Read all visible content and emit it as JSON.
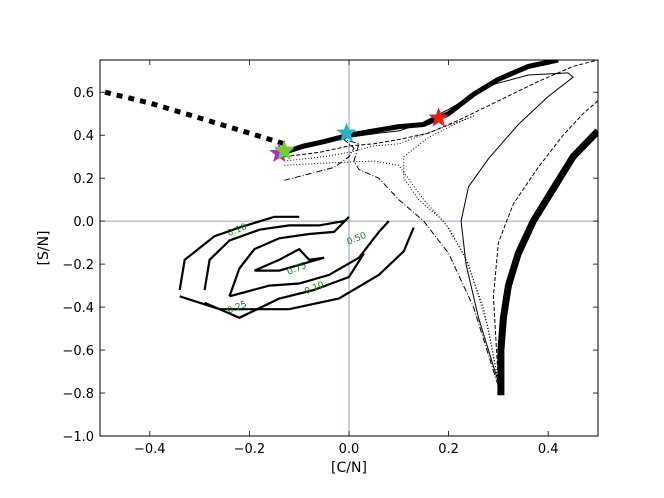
{
  "chart_data": {
    "type": "line",
    "xlabel": "[C/N]",
    "ylabel": "[S/N]",
    "xlim": [
      -0.5,
      0.5
    ],
    "ylim": [
      -1.0,
      0.75
    ],
    "xticks": [
      -0.4,
      -0.2,
      0.0,
      0.2,
      0.4
    ],
    "xtick_labels": [
      "−0.4",
      "−0.2",
      "0.0",
      "0.2",
      "0.4"
    ],
    "yticks": [
      -1.0,
      -0.8,
      -0.6,
      -0.4,
      -0.2,
      0.0,
      0.2,
      0.4,
      0.6
    ],
    "ytick_labels": [
      "−1.0",
      "−0.8",
      "−0.6",
      "−0.4",
      "−0.2",
      "0.0",
      "0.2",
      "0.4",
      "0.6"
    ],
    "reference_lines": {
      "x": 0.0,
      "y": 0.0,
      "color": "#6b7fd7"
    },
    "series": [
      {
        "style": "dotted-thick",
        "points": [
          [
            -0.49,
            0.6
          ],
          [
            -0.4,
            0.55
          ],
          [
            -0.3,
            0.48
          ],
          [
            -0.2,
            0.41
          ],
          [
            -0.13,
            0.36
          ]
        ]
      },
      {
        "style": "solid-thick",
        "points": [
          [
            -0.13,
            0.32
          ],
          [
            -0.09,
            0.35
          ],
          [
            -0.05,
            0.37
          ],
          [
            0.0,
            0.4
          ],
          [
            0.05,
            0.42
          ],
          [
            0.1,
            0.44
          ],
          [
            0.15,
            0.45
          ],
          [
            0.2,
            0.5
          ],
          [
            0.25,
            0.59
          ],
          [
            0.3,
            0.66
          ],
          [
            0.36,
            0.72
          ],
          [
            0.42,
            0.75
          ]
        ]
      },
      {
        "style": "solid-thin",
        "points": [
          [
            -0.13,
            0.32
          ],
          [
            -0.07,
            0.35
          ],
          [
            0.0,
            0.39
          ],
          [
            0.06,
            0.41
          ],
          [
            0.1,
            0.42
          ],
          [
            0.14,
            0.45
          ],
          [
            0.2,
            0.52
          ],
          [
            0.28,
            0.63
          ],
          [
            0.36,
            0.68
          ],
          [
            0.44,
            0.69
          ],
          [
            0.45,
            0.67
          ],
          [
            0.4,
            0.58
          ],
          [
            0.34,
            0.45
          ],
          [
            0.28,
            0.29
          ],
          [
            0.24,
            0.16
          ],
          [
            0.225,
            0.0
          ],
          [
            0.235,
            -0.2
          ],
          [
            0.26,
            -0.45
          ],
          [
            0.3,
            -0.75
          ]
        ]
      },
      {
        "style": "dashed",
        "points": [
          [
            -0.13,
            0.3
          ],
          [
            -0.06,
            0.32
          ],
          [
            0.0,
            0.35
          ],
          [
            0.05,
            0.36
          ],
          [
            0.1,
            0.38
          ],
          [
            0.16,
            0.41
          ],
          [
            0.22,
            0.47
          ],
          [
            0.3,
            0.56
          ],
          [
            0.38,
            0.65
          ],
          [
            0.45,
            0.72
          ],
          [
            0.5,
            0.75
          ]
        ]
      },
      {
        "style": "dashed",
        "points": [
          [
            0.5,
            0.56
          ],
          [
            0.47,
            0.5
          ],
          [
            0.43,
            0.4
          ],
          [
            0.38,
            0.25
          ],
          [
            0.33,
            0.08
          ],
          [
            0.3,
            -0.1
          ],
          [
            0.29,
            -0.35
          ],
          [
            0.3,
            -0.75
          ]
        ]
      },
      {
        "style": "dotted",
        "points": [
          [
            -0.13,
            0.28
          ],
          [
            -0.05,
            0.3
          ],
          [
            0.0,
            0.32
          ],
          [
            0.05,
            0.35
          ],
          [
            0.1,
            0.36
          ],
          [
            0.17,
            0.42
          ],
          [
            0.23,
            0.47
          ],
          [
            0.25,
            0.49
          ],
          [
            0.22,
            0.46
          ],
          [
            0.16,
            0.39
          ],
          [
            0.11,
            0.3
          ],
          [
            0.11,
            0.2
          ],
          [
            0.14,
            0.1
          ],
          [
            0.19,
            0.0
          ],
          [
            0.23,
            -0.15
          ],
          [
            0.27,
            -0.4
          ],
          [
            0.3,
            -0.75
          ]
        ]
      },
      {
        "style": "dotted",
        "points": [
          [
            -0.13,
            0.26
          ],
          [
            -0.05,
            0.27
          ],
          [
            0.05,
            0.28
          ],
          [
            0.1,
            0.26
          ],
          [
            0.15,
            0.1
          ],
          [
            0.2,
            -0.03
          ],
          [
            0.24,
            -0.2
          ],
          [
            0.28,
            -0.5
          ],
          [
            0.3,
            -0.75
          ]
        ]
      },
      {
        "style": "dashdot",
        "points": [
          [
            -0.13,
            0.19
          ],
          [
            -0.08,
            0.22
          ],
          [
            -0.03,
            0.25
          ],
          [
            0.0,
            0.3
          ],
          [
            0.01,
            0.34
          ],
          [
            -0.01,
            0.38
          ],
          [
            0.02,
            0.36
          ],
          [
            0.01,
            0.28
          ],
          [
            0.02,
            0.24
          ],
          [
            0.06,
            0.2
          ],
          [
            0.1,
            0.1
          ],
          [
            0.15,
            0.0
          ],
          [
            0.2,
            -0.15
          ],
          [
            0.25,
            -0.4
          ],
          [
            0.3,
            -0.77
          ]
        ]
      },
      {
        "style": "solid-xthick",
        "points": [
          [
            0.5,
            0.42
          ],
          [
            0.45,
            0.3
          ],
          [
            0.41,
            0.15
          ],
          [
            0.37,
            0.0
          ],
          [
            0.34,
            -0.15
          ],
          [
            0.32,
            -0.3
          ],
          [
            0.31,
            -0.45
          ],
          [
            0.305,
            -0.6
          ],
          [
            0.305,
            -0.81
          ]
        ]
      }
    ],
    "contours": [
      {
        "label": "0.10",
        "points": [
          [
            -0.34,
            -0.32
          ],
          [
            -0.33,
            -0.18
          ],
          [
            -0.27,
            -0.07
          ],
          [
            -0.22,
            -0.03
          ],
          [
            -0.15,
            0.02
          ],
          [
            -0.1,
            0.02
          ]
        ]
      },
      {
        "label": "0.10",
        "points": [
          [
            -0.34,
            -0.35
          ],
          [
            -0.26,
            -0.41
          ],
          [
            -0.12,
            -0.41
          ],
          [
            -0.02,
            -0.36
          ],
          [
            0.06,
            -0.25
          ],
          [
            0.11,
            -0.14
          ],
          [
            0.13,
            -0.03
          ]
        ]
      },
      {
        "label": "0.25",
        "points": [
          [
            -0.29,
            -0.32
          ],
          [
            -0.28,
            -0.18
          ],
          [
            -0.24,
            -0.09
          ],
          [
            -0.18,
            -0.04
          ],
          [
            -0.12,
            -0.02
          ],
          [
            -0.06,
            -0.02
          ],
          [
            -0.01,
            0.0
          ]
        ]
      },
      {
        "label": "0.25",
        "points": [
          [
            -0.29,
            -0.38
          ],
          [
            -0.22,
            -0.45
          ],
          [
            -0.14,
            -0.36
          ],
          [
            -0.07,
            -0.32
          ],
          [
            0.0,
            -0.26
          ],
          [
            0.03,
            -0.15
          ]
        ]
      },
      {
        "label": "0.50",
        "points": [
          [
            -0.24,
            -0.35
          ],
          [
            -0.22,
            -0.22
          ],
          [
            -0.19,
            -0.13
          ],
          [
            -0.14,
            -0.08
          ],
          [
            -0.08,
            -0.06
          ],
          [
            -0.03,
            -0.05
          ],
          [
            0.0,
            0.02
          ]
        ]
      },
      {
        "label": "0.50",
        "points": [
          [
            -0.24,
            -0.35
          ],
          [
            -0.16,
            -0.3
          ],
          [
            -0.1,
            -0.29
          ],
          [
            -0.04,
            -0.25
          ],
          [
            0.02,
            -0.17
          ],
          [
            0.06,
            -0.05
          ],
          [
            0.08,
            0.0
          ]
        ]
      },
      {
        "label": "0.75",
        "points": [
          [
            -0.19,
            -0.23
          ],
          [
            -0.14,
            -0.18
          ],
          [
            -0.1,
            -0.13
          ],
          [
            -0.08,
            -0.18
          ],
          [
            -0.05,
            -0.17
          ],
          [
            -0.14,
            -0.23
          ],
          [
            -0.19,
            -0.23
          ]
        ]
      }
    ],
    "contour_labels": [
      {
        "text": "0.10",
        "x": -0.225,
        "y": -0.04,
        "color": "#1a7a1a"
      },
      {
        "text": "0.50",
        "x": 0.015,
        "y": -0.08,
        "color": "#1a7a1a"
      },
      {
        "text": "0.75",
        "x": -0.105,
        "y": -0.22,
        "color": "#1a7a1a"
      },
      {
        "text": "0.25",
        "x": -0.225,
        "y": -0.4,
        "color": "#1a7a1a"
      },
      {
        "text": "0.10",
        "x": -0.07,
        "y": -0.31,
        "color": "#1a7a1a"
      }
    ],
    "markers": [
      {
        "shape": "star",
        "x": -0.14,
        "y": 0.315,
        "color": "#b02bd1"
      },
      {
        "shape": "star",
        "x": -0.13,
        "y": 0.33,
        "color": "#b5a63a"
      },
      {
        "shape": "star",
        "x": -0.13,
        "y": 0.325,
        "color": "#6ed12c"
      },
      {
        "shape": "star",
        "x": -0.005,
        "y": 0.41,
        "color": "#1fb7c8"
      },
      {
        "shape": "star",
        "x": 0.18,
        "y": 0.48,
        "color": "#e8201c"
      }
    ]
  }
}
